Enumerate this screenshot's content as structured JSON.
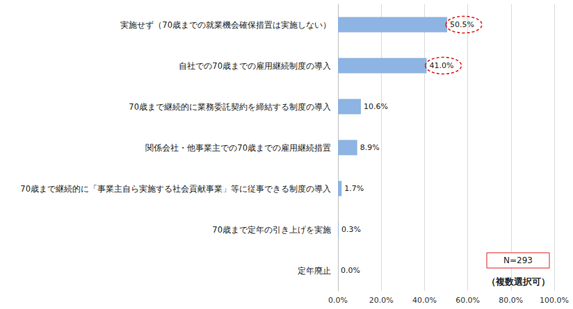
{
  "chart_data": {
    "type": "bar",
    "orientation": "horizontal",
    "categories": [
      "実施せず（70歳までの就業機会確保措置は実施しない）",
      "自社での70歳までの雇用継続制度の導入",
      "70歳まで継続的に業務委託契約を締結する制度の導入",
      "関係会社・他事業主での70歳までの雇用継続措置",
      "70歳まで継続的に「事業主自ら実施する社会貢献事業」等に従事できる制度の導入",
      "70歳まで定年の引き上げを実施",
      "定年廃止"
    ],
    "values": [
      50.5,
      41.0,
      10.6,
      8.9,
      1.7,
      0.3,
      0.0
    ],
    "value_labels": [
      "50.5%",
      "41.0%",
      "10.6%",
      "8.9%",
      "1.7%",
      "0.3%",
      "0.0%"
    ],
    "data_labels": true,
    "color": "#8db4e2",
    "xlim": [
      0,
      100
    ],
    "xticks": [
      {
        "value": 0,
        "label": "0.0%"
      },
      {
        "value": 20,
        "label": "20.0%"
      },
      {
        "value": 40,
        "label": "40.0%"
      },
      {
        "value": 60,
        "label": "60.0%"
      },
      {
        "value": 80,
        "label": "80.0%"
      },
      {
        "value": 100,
        "label": "100.0%"
      }
    ],
    "grid": true,
    "annotations": [
      "N=293",
      "（複数選択可）"
    ]
  }
}
